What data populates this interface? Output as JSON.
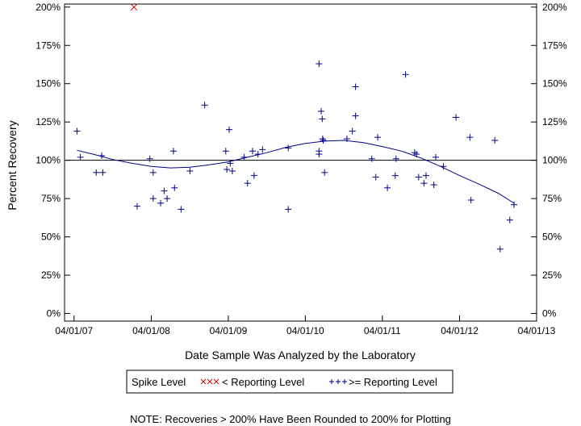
{
  "chart_data": {
    "type": "scatter",
    "title": "",
    "xlabel": "Date Sample Was Analyzed by the Laboratory",
    "ylabel": "Percent Recovery",
    "x_axis": {
      "type": "date",
      "min": "2007-02-15",
      "max": "2013-04-01",
      "ticks": [
        "2007-04-01",
        "2008-04-01",
        "2009-04-01",
        "2010-04-01",
        "2011-04-01",
        "2012-04-01",
        "2013-04-01"
      ],
      "tick_labels": [
        "04/01/07",
        "04/01/08",
        "04/01/09",
        "04/01/10",
        "04/01/11",
        "04/01/12",
        "04/01/13"
      ]
    },
    "y_axis": {
      "min": -5,
      "max": 202,
      "ticks": [
        0,
        25,
        50,
        75,
        100,
        125,
        150,
        175,
        200
      ],
      "tick_labels": [
        "0%",
        "25%",
        "50%",
        "75%",
        "100%",
        "125%",
        "150%",
        "175%",
        "200%"
      ],
      "right_axis": true
    },
    "reference_line": 100,
    "grid": false,
    "legend": {
      "placement": "bottom",
      "title": "Spike Level",
      "entries": [
        {
          "marker": "xxx-red",
          "label": "< Reporting Level",
          "color": "#cc0000"
        },
        {
          "marker": "plus-blue",
          "label": ">= Reporting Level",
          "color": "#00008b"
        }
      ]
    },
    "series": [
      {
        "name": "< Reporting Level",
        "marker": "x",
        "color": "#cc0000",
        "points": [
          {
            "x": "2008-01-10",
            "y": 200
          }
        ]
      },
      {
        "name": ">= Reporting Level",
        "marker": "plus",
        "color": "#00008b",
        "points": [
          {
            "x": "2007-04-15",
            "y": 119
          },
          {
            "x": "2007-05-01",
            "y": 102
          },
          {
            "x": "2007-07-15",
            "y": 92
          },
          {
            "x": "2007-08-10",
            "y": 103
          },
          {
            "x": "2007-08-15",
            "y": 92
          },
          {
            "x": "2008-01-25",
            "y": 70
          },
          {
            "x": "2008-03-25",
            "y": 101
          },
          {
            "x": "2008-04-10",
            "y": 92
          },
          {
            "x": "2008-04-10",
            "y": 75
          },
          {
            "x": "2008-05-15",
            "y": 72
          },
          {
            "x": "2008-06-01",
            "y": 80
          },
          {
            "x": "2008-06-15",
            "y": 75
          },
          {
            "x": "2008-07-15",
            "y": 106
          },
          {
            "x": "2008-07-20",
            "y": 82
          },
          {
            "x": "2008-08-20",
            "y": 68
          },
          {
            "x": "2008-10-01",
            "y": 93
          },
          {
            "x": "2008-12-10",
            "y": 136
          },
          {
            "x": "2009-03-20",
            "y": 106
          },
          {
            "x": "2009-03-25",
            "y": 94
          },
          {
            "x": "2009-04-05",
            "y": 120
          },
          {
            "x": "2009-04-10",
            "y": 98
          },
          {
            "x": "2009-04-20",
            "y": 93
          },
          {
            "x": "2009-06-15",
            "y": 102
          },
          {
            "x": "2009-07-01",
            "y": 85
          },
          {
            "x": "2009-07-25",
            "y": 106
          },
          {
            "x": "2009-08-01",
            "y": 90
          },
          {
            "x": "2009-08-20",
            "y": 104
          },
          {
            "x": "2009-09-10",
            "y": 107
          },
          {
            "x": "2010-01-10",
            "y": 108
          },
          {
            "x": "2010-01-10",
            "y": 68
          },
          {
            "x": "2010-06-05",
            "y": 163
          },
          {
            "x": "2010-06-05",
            "y": 104
          },
          {
            "x": "2010-06-05",
            "y": 106
          },
          {
            "x": "2010-06-15",
            "y": 132
          },
          {
            "x": "2010-06-20",
            "y": 127
          },
          {
            "x": "2010-06-22",
            "y": 114
          },
          {
            "x": "2010-06-25",
            "y": 113
          },
          {
            "x": "2010-07-01",
            "y": 92
          },
          {
            "x": "2010-10-15",
            "y": 114
          },
          {
            "x": "2010-11-10",
            "y": 119
          },
          {
            "x": "2010-11-25",
            "y": 148
          },
          {
            "x": "2010-11-25",
            "y": 129
          },
          {
            "x": "2011-02-10",
            "y": 101
          },
          {
            "x": "2011-03-01",
            "y": 89
          },
          {
            "x": "2011-03-10",
            "y": 115
          },
          {
            "x": "2011-04-25",
            "y": 82
          },
          {
            "x": "2011-06-01",
            "y": 90
          },
          {
            "x": "2011-06-05",
            "y": 101
          },
          {
            "x": "2011-07-20",
            "y": 156
          },
          {
            "x": "2011-09-01",
            "y": 105
          },
          {
            "x": "2011-09-10",
            "y": 104
          },
          {
            "x": "2011-09-20",
            "y": 89
          },
          {
            "x": "2011-10-15",
            "y": 85
          },
          {
            "x": "2011-10-25",
            "y": 90
          },
          {
            "x": "2011-12-01",
            "y": 84
          },
          {
            "x": "2011-12-10",
            "y": 102
          },
          {
            "x": "2012-01-15",
            "y": 96
          },
          {
            "x": "2012-03-15",
            "y": 128
          },
          {
            "x": "2012-05-20",
            "y": 115
          },
          {
            "x": "2012-05-25",
            "y": 74
          },
          {
            "x": "2012-09-15",
            "y": 113
          },
          {
            "x": "2012-10-10",
            "y": 42
          },
          {
            "x": "2012-11-25",
            "y": 61
          },
          {
            "x": "2012-12-15",
            "y": 71
          }
        ]
      },
      {
        "name": "",
        "type": "line",
        "color": "#00008b",
        "points": [
          {
            "x": "2007-04-15",
            "y": 106.5
          },
          {
            "x": "2007-07-01",
            "y": 104
          },
          {
            "x": "2007-10-01",
            "y": 100.5
          },
          {
            "x": "2008-01-01",
            "y": 98
          },
          {
            "x": "2008-04-01",
            "y": 96
          },
          {
            "x": "2008-07-01",
            "y": 95
          },
          {
            "x": "2008-10-01",
            "y": 95.5
          },
          {
            "x": "2009-01-01",
            "y": 97
          },
          {
            "x": "2009-04-01",
            "y": 99
          },
          {
            "x": "2009-07-01",
            "y": 102
          },
          {
            "x": "2009-10-01",
            "y": 105
          },
          {
            "x": "2010-01-01",
            "y": 108.5
          },
          {
            "x": "2010-04-01",
            "y": 111
          },
          {
            "x": "2010-07-01",
            "y": 112.5
          },
          {
            "x": "2010-10-01",
            "y": 113
          },
          {
            "x": "2011-01-01",
            "y": 111.5
          },
          {
            "x": "2011-04-01",
            "y": 109
          },
          {
            "x": "2011-07-01",
            "y": 106
          },
          {
            "x": "2011-10-01",
            "y": 101.5
          },
          {
            "x": "2012-01-01",
            "y": 96
          },
          {
            "x": "2012-04-01",
            "y": 90
          },
          {
            "x": "2012-07-01",
            "y": 84.5
          },
          {
            "x": "2012-10-01",
            "y": 78.5
          },
          {
            "x": "2012-12-15",
            "y": 72
          }
        ]
      }
    ],
    "note": "NOTE: Recoveries > 200% Have Been Rounded to 200% for Plotting"
  }
}
